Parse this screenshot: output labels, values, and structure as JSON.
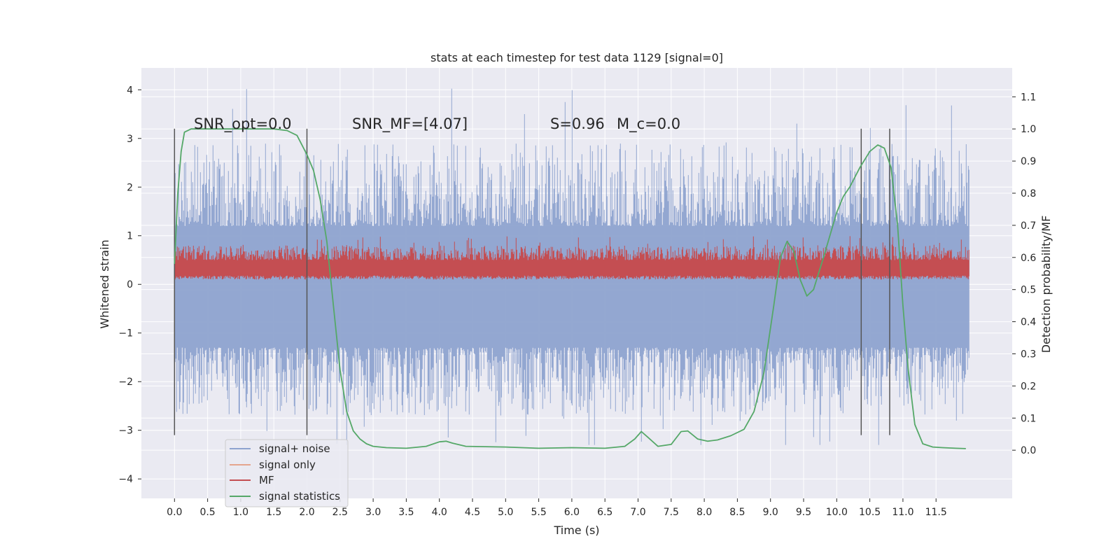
{
  "chart_data": {
    "type": "line",
    "title": "stats at each timestep for test data 1129 [signal=0]",
    "xlabel": "Time (s)",
    "ylabel": "Whitened strain",
    "ylabel_right": "Detection probability/MF",
    "xlim": [
      -0.5,
      12.65
    ],
    "ylim": [
      -4.4,
      4.45
    ],
    "ylim_right": [
      -0.15,
      1.19
    ],
    "x_ticks": [
      "0.0",
      "0.5",
      "1.0",
      "1.5",
      "2.0",
      "2.5",
      "3.0",
      "3.5",
      "4.0",
      "4.5",
      "5.0",
      "5.5",
      "6.0",
      "6.5",
      "7.0",
      "7.5",
      "8.0",
      "8.5",
      "9.0",
      "9.5",
      "10.0",
      "10.5",
      "11.0",
      "11.5"
    ],
    "y_ticks": [
      "−4",
      "−3",
      "−2",
      "−1",
      "0",
      "1",
      "2",
      "3",
      "4"
    ],
    "y_right_ticks": [
      "0.0",
      "0.1",
      "0.2",
      "0.3",
      "0.4",
      "0.5",
      "0.6",
      "0.7",
      "0.8",
      "0.9",
      "1.0",
      "1.1"
    ],
    "grid": true,
    "legend": {
      "location": "lower-left",
      "entries": [
        {
          "label": "signal+ noise",
          "color": "#8ea3cf"
        },
        {
          "label": "signal only",
          "color": "#e5a58d"
        },
        {
          "label": "MF",
          "color": "#c44e52"
        },
        {
          "label": "signal statistics",
          "color": "#55a868"
        }
      ]
    },
    "annotations": [
      {
        "text": "SNR_opt=0.0",
        "x": 0.2,
        "y": 3.3
      },
      {
        "text": "SNR_MF=[4.07]",
        "x": 2.6,
        "y": 3.3
      },
      {
        "text": "S=0.96",
        "x": 5.6,
        "y": 3.3
      },
      {
        "text": "M_c=0.0",
        "x": 6.6,
        "y": 3.3
      }
    ],
    "vertical_markers": [
      0.0,
      2.0,
      10.37,
      10.8
    ],
    "series": [
      {
        "name": "signal+ noise",
        "color": "#8ea3cf",
        "x_range": [
          0.0,
          12.0
        ],
        "y_envelope": [
          -3.3,
          4.1
        ]
      },
      {
        "name": "MF",
        "color": "#c44e52",
        "x_range": [
          0.0,
          12.0
        ],
        "y_envelope": [
          0.1,
          1.0
        ]
      },
      {
        "name": "signal statistics",
        "color": "#55a868",
        "axis": "right",
        "x": [
          0.0,
          0.05,
          0.1,
          0.15,
          0.25,
          0.5,
          1.0,
          1.5,
          1.7,
          1.85,
          2.0,
          2.1,
          2.2,
          2.3,
          2.4,
          2.5,
          2.6,
          2.7,
          2.8,
          2.9,
          3.0,
          3.2,
          3.5,
          3.8,
          4.0,
          4.1,
          4.2,
          4.4,
          5.0,
          5.5,
          6.0,
          6.5,
          6.8,
          6.95,
          7.05,
          7.15,
          7.3,
          7.5,
          7.65,
          7.75,
          7.9,
          8.05,
          8.2,
          8.4,
          8.6,
          8.75,
          8.9,
          9.05,
          9.15,
          9.25,
          9.35,
          9.45,
          9.55,
          9.65,
          9.8,
          10.0,
          10.1,
          10.2,
          10.35,
          10.5,
          10.62,
          10.72,
          10.82,
          10.92,
          11.0,
          11.08,
          11.18,
          11.3,
          11.45,
          11.6,
          11.8,
          11.95
        ],
        "y": [
          0.58,
          0.8,
          0.93,
          0.99,
          1.0,
          1.0,
          1.0,
          1.0,
          0.995,
          0.98,
          0.92,
          0.87,
          0.78,
          0.65,
          0.45,
          0.25,
          0.12,
          0.06,
          0.035,
          0.02,
          0.012,
          0.008,
          0.006,
          0.012,
          0.026,
          0.028,
          0.022,
          0.012,
          0.01,
          0.006,
          0.008,
          0.006,
          0.012,
          0.035,
          0.058,
          0.04,
          0.012,
          0.018,
          0.058,
          0.06,
          0.035,
          0.028,
          0.032,
          0.045,
          0.065,
          0.12,
          0.24,
          0.45,
          0.6,
          0.65,
          0.62,
          0.53,
          0.48,
          0.5,
          0.6,
          0.74,
          0.79,
          0.82,
          0.88,
          0.93,
          0.95,
          0.94,
          0.88,
          0.7,
          0.45,
          0.25,
          0.08,
          0.02,
          0.01,
          0.008,
          0.006,
          0.005
        ]
      }
    ]
  }
}
